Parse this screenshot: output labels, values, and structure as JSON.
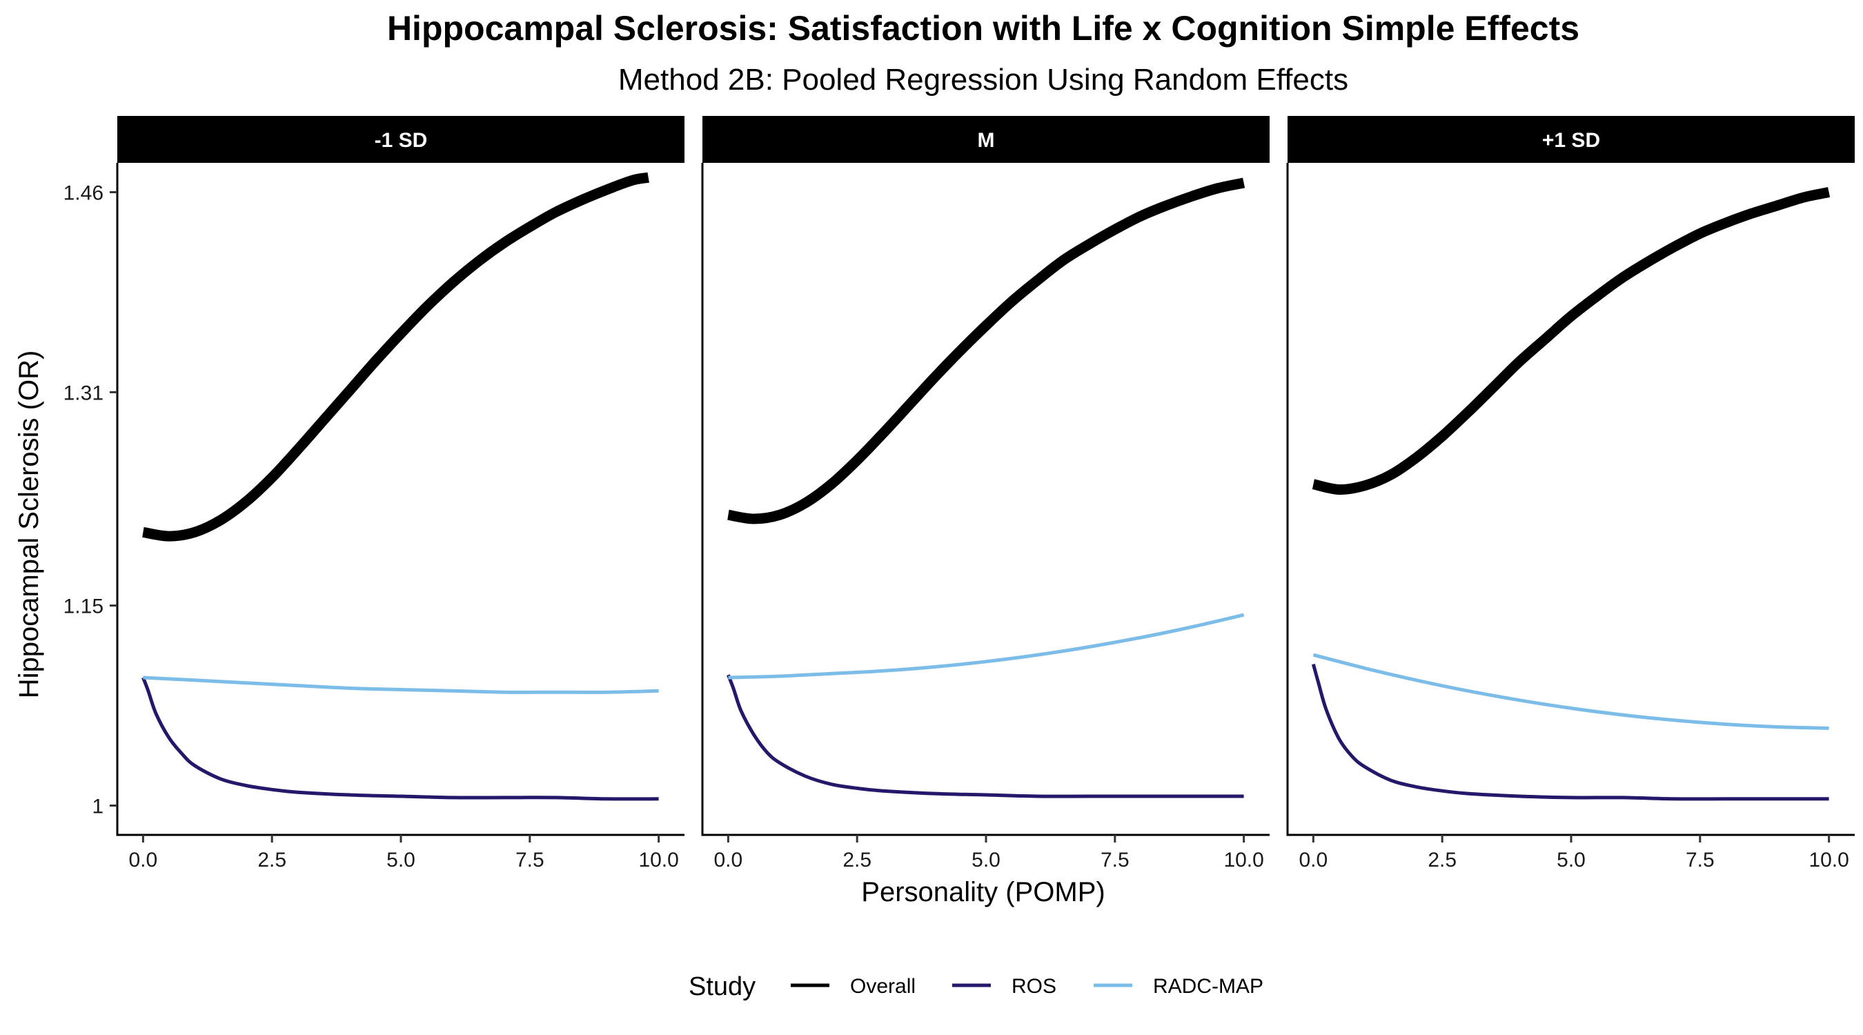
{
  "chart_data": {
    "type": "line",
    "title": "Hippocampal Sclerosis: Satisfaction with Life x Cognition Simple Effects",
    "subtitle": "Method 2B: Pooled Regression Using Random Effects",
    "xlabel": "Personality (POMP)",
    "ylabel": "Hippocampal Sclerosis (OR)",
    "xlim": [
      -0.5,
      10.5
    ],
    "ylim": [
      0.978,
      1.482
    ],
    "x_ticks": [
      0,
      2.5,
      5,
      7.5,
      10
    ],
    "x_tick_labels": [
      "0.0",
      "2.5",
      "5.0",
      "7.5",
      "10.0"
    ],
    "y_ticks": [
      1,
      1.15,
      1.31,
      1.46
    ],
    "y_tick_labels": [
      "1",
      "1.15",
      "1.31",
      "1.46"
    ],
    "grid": false,
    "legend": {
      "title": "Study",
      "position": "bottom",
      "entries": [
        {
          "label": "Overall",
          "color": "#000000"
        },
        {
          "label": "ROS",
          "color": "#23186a"
        },
        {
          "label": "RADC-MAP",
          "color": "#7bbde8"
        }
      ]
    },
    "panels": [
      {
        "label": "-1 SD",
        "series": [
          {
            "name": "Overall",
            "color": "#000000",
            "x": [
              0,
              0.5,
              1,
              1.5,
              2,
              2.5,
              3,
              3.5,
              4,
              4.5,
              5,
              5.5,
              6,
              6.5,
              7,
              7.5,
              8,
              8.5,
              9,
              9.5,
              9.8
            ],
            "y": [
              1.205,
              1.202,
              1.205,
              1.214,
              1.228,
              1.246,
              1.267,
              1.289,
              1.311,
              1.333,
              1.354,
              1.374,
              1.392,
              1.408,
              1.422,
              1.434,
              1.445,
              1.454,
              1.462,
              1.469,
              1.471
            ]
          },
          {
            "name": "ROS",
            "color": "#23186a",
            "x": [
              0,
              0.1,
              0.25,
              0.5,
              0.75,
              1,
              1.5,
              2,
              2.5,
              3,
              4,
              5,
              6,
              7,
              8,
              9,
              10
            ],
            "y": [
              1.096,
              1.086,
              1.069,
              1.051,
              1.039,
              1.03,
              1.02,
              1.015,
              1.012,
              1.01,
              1.008,
              1.007,
              1.006,
              1.006,
              1.006,
              1.005,
              1.005
            ]
          },
          {
            "name": "RADC-MAP",
            "color": "#7bbde8",
            "x": [
              0,
              1,
              2,
              3,
              4,
              5,
              6,
              7,
              8,
              9,
              10
            ],
            "y": [
              1.096,
              1.094,
              1.092,
              1.09,
              1.088,
              1.087,
              1.086,
              1.085,
              1.085,
              1.085,
              1.086
            ]
          }
        ]
      },
      {
        "label": "M",
        "series": [
          {
            "name": "Overall",
            "color": "#000000",
            "x": [
              0,
              0.5,
              1,
              1.5,
              2,
              2.5,
              3,
              3.5,
              4,
              4.5,
              5,
              5.5,
              6,
              6.5,
              7,
              7.5,
              8,
              8.5,
              9,
              9.5,
              10
            ],
            "y": [
              1.218,
              1.215,
              1.218,
              1.227,
              1.241,
              1.259,
              1.279,
              1.3,
              1.321,
              1.341,
              1.36,
              1.378,
              1.394,
              1.409,
              1.421,
              1.432,
              1.442,
              1.45,
              1.457,
              1.463,
              1.467
            ]
          },
          {
            "name": "ROS",
            "color": "#23186a",
            "x": [
              0,
              0.1,
              0.25,
              0.5,
              0.75,
              1,
              1.5,
              2,
              2.5,
              3,
              4,
              5,
              6,
              7,
              8,
              9,
              10
            ],
            "y": [
              1.098,
              1.088,
              1.071,
              1.053,
              1.04,
              1.032,
              1.022,
              1.016,
              1.013,
              1.011,
              1.009,
              1.008,
              1.007,
              1.007,
              1.007,
              1.007,
              1.007
            ]
          },
          {
            "name": "RADC-MAP",
            "color": "#7bbde8",
            "x": [
              0,
              1,
              2,
              3,
              4,
              5,
              6,
              7,
              8,
              9,
              10
            ],
            "y": [
              1.096,
              1.097,
              1.099,
              1.101,
              1.104,
              1.108,
              1.113,
              1.119,
              1.126,
              1.134,
              1.143
            ]
          }
        ]
      },
      {
        "label": "+1 SD",
        "series": [
          {
            "name": "Overall",
            "color": "#000000",
            "x": [
              0,
              0.5,
              1,
              1.5,
              2,
              2.5,
              3,
              3.5,
              4,
              4.5,
              5,
              5.5,
              6,
              6.5,
              7,
              7.5,
              8,
              8.5,
              9,
              9.5,
              10
            ],
            "y": [
              1.241,
              1.237,
              1.24,
              1.248,
              1.261,
              1.277,
              1.295,
              1.314,
              1.333,
              1.35,
              1.367,
              1.382,
              1.396,
              1.408,
              1.419,
              1.429,
              1.437,
              1.444,
              1.45,
              1.456,
              1.46
            ]
          },
          {
            "name": "ROS",
            "color": "#23186a",
            "x": [
              0,
              0.1,
              0.25,
              0.5,
              0.75,
              1,
              1.5,
              2,
              2.5,
              3,
              4,
              5,
              6,
              7,
              8,
              9,
              10
            ],
            "y": [
              1.106,
              1.092,
              1.072,
              1.05,
              1.037,
              1.029,
              1.019,
              1.014,
              1.011,
              1.009,
              1.007,
              1.006,
              1.006,
              1.005,
              1.005,
              1.005,
              1.005
            ]
          },
          {
            "name": "RADC-MAP",
            "color": "#7bbde8",
            "x": [
              0,
              1,
              2,
              3,
              4,
              5,
              6,
              7,
              8,
              9,
              10
            ],
            "y": [
              1.113,
              1.103,
              1.094,
              1.086,
              1.079,
              1.073,
              1.068,
              1.064,
              1.061,
              1.059,
              1.058
            ]
          }
        ]
      }
    ]
  }
}
